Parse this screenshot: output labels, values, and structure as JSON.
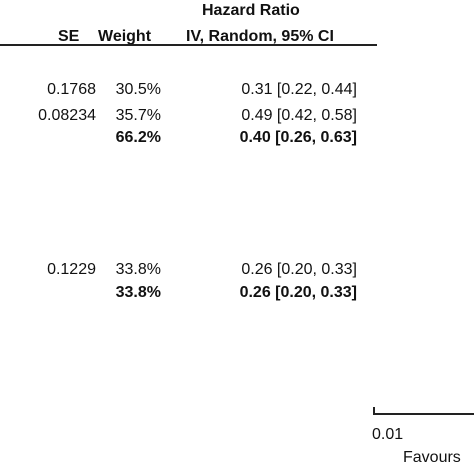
{
  "chart_data": {
    "type": "table",
    "header": {
      "group_title": "Hazard Ratio",
      "col_se": "SE",
      "col_weight": "Weight",
      "col_hr": "IV, Random, 95% CI"
    },
    "rows": [
      {
        "se": "0.1768",
        "weight": "30.5%",
        "hr": "0.31 [0.22, 0.44]",
        "subtotal": false
      },
      {
        "se": "0.08234",
        "weight": "35.7%",
        "hr": "0.49 [0.42, 0.58]",
        "subtotal": false
      },
      {
        "se": "",
        "weight": "66.2%",
        "hr": "0.40 [0.26, 0.63]",
        "subtotal": true
      },
      {
        "se": "0.1229",
        "weight": "33.8%",
        "hr": "0.26 [0.20, 0.33]",
        "subtotal": false
      },
      {
        "se": "",
        "weight": "33.8%",
        "hr": "0.26 [0.20, 0.33]",
        "subtotal": true
      }
    ],
    "axis": {
      "scale": "log",
      "tick_label": "0.01",
      "favours_label": "Favours"
    }
  }
}
